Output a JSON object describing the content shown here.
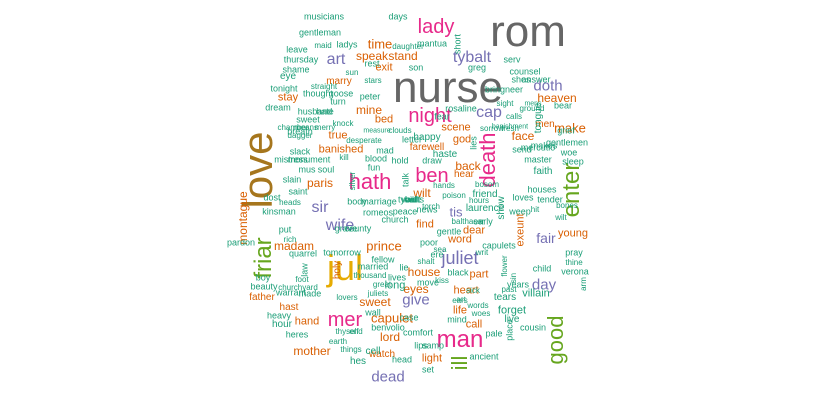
{
  "palette": {
    "grey": "#666666",
    "teal": "#1b9e77",
    "orange": "#d95f02",
    "purple": "#7570b3",
    "pink": "#e7298a",
    "green": "#66a61e",
    "gold": "#e6ab02",
    "brown": "#a6761d"
  },
  "words": [
    {
      "t": "rom",
      "c": "grey"
    },
    {
      "t": "nurse",
      "c": "grey"
    },
    {
      "t": "love",
      "c": "brown"
    },
    {
      "t": "jul",
      "c": "gold"
    },
    {
      "t": "man",
      "c": "pink"
    },
    {
      "t": "lady",
      "c": "pink"
    },
    {
      "t": "night",
      "c": "pink"
    },
    {
      "t": "friar",
      "c": "green"
    },
    {
      "t": "good",
      "c": "green"
    },
    {
      "t": "enter",
      "c": "green"
    },
    {
      "t": "death",
      "c": "pink"
    },
    {
      "t": "hath",
      "c": "pink"
    },
    {
      "t": "ben",
      "c": "pink"
    },
    {
      "t": "ill",
      "c": "green"
    },
    {
      "t": "mer",
      "c": "pink"
    },
    {
      "t": "juliet",
      "c": "purple"
    },
    {
      "t": "tybalt",
      "c": "purple"
    },
    {
      "t": "art",
      "c": "purple"
    },
    {
      "t": "cap",
      "c": "purple"
    },
    {
      "t": "doth",
      "c": "purple"
    },
    {
      "t": "sir",
      "c": "purple"
    },
    {
      "t": "wife",
      "c": "purple"
    },
    {
      "t": "give",
      "c": "purple"
    },
    {
      "t": "dead",
      "c": "purple"
    },
    {
      "t": "day",
      "c": "purple"
    },
    {
      "t": "fair",
      "c": "purple"
    },
    {
      "t": "prince",
      "c": "orange"
    },
    {
      "t": "capulet",
      "c": "orange"
    },
    {
      "t": "tis",
      "c": "purple"
    },
    {
      "t": "time",
      "c": "orange"
    },
    {
      "t": "make",
      "c": "orange"
    },
    {
      "t": "paris",
      "c": "orange"
    },
    {
      "t": "speak",
      "c": "orange"
    },
    {
      "t": "stand",
      "c": "orange"
    },
    {
      "t": "exit",
      "c": "orange"
    },
    {
      "t": "stay",
      "c": "orange"
    },
    {
      "t": "heaven",
      "c": "orange"
    },
    {
      "t": "montague",
      "c": "orange"
    },
    {
      "t": "madam",
      "c": "orange"
    },
    {
      "t": "mother",
      "c": "orange"
    },
    {
      "t": "house",
      "c": "orange"
    },
    {
      "t": "eyes",
      "c": "orange"
    },
    {
      "t": "sweet",
      "c": "orange"
    },
    {
      "t": "word",
      "c": "orange"
    },
    {
      "t": "exeunt",
      "c": "orange"
    },
    {
      "t": "young",
      "c": "orange"
    },
    {
      "t": "father",
      "c": "orange"
    },
    {
      "t": "hast",
      "c": "orange"
    },
    {
      "t": "hand",
      "c": "orange"
    },
    {
      "t": "lord",
      "c": "orange"
    },
    {
      "t": "light",
      "c": "orange"
    },
    {
      "t": "call",
      "c": "orange"
    },
    {
      "t": "watch",
      "c": "orange"
    },
    {
      "t": "mine",
      "c": "orange"
    },
    {
      "t": "bed",
      "c": "orange"
    },
    {
      "t": "face",
      "c": "orange"
    },
    {
      "t": "back",
      "c": "orange"
    },
    {
      "t": "wilt",
      "c": "orange"
    },
    {
      "t": "find",
      "c": "orange"
    },
    {
      "t": "dear",
      "c": "orange"
    },
    {
      "t": "part",
      "c": "orange"
    },
    {
      "t": "heart",
      "c": "orange"
    },
    {
      "t": "life",
      "c": "orange"
    },
    {
      "t": "scene",
      "c": "orange"
    },
    {
      "t": "god",
      "c": "orange"
    },
    {
      "t": "men",
      "c": "orange"
    },
    {
      "t": "marry",
      "c": "orange"
    },
    {
      "t": "true",
      "c": "orange"
    },
    {
      "t": "hear",
      "c": "orange"
    },
    {
      "t": "farewell",
      "c": "orange"
    },
    {
      "t": "banished",
      "c": "orange"
    },
    {
      "t": "holy",
      "c": "orange"
    },
    {
      "t": "musicians",
      "c": "teal"
    },
    {
      "t": "gentleman",
      "c": "teal"
    },
    {
      "t": "leave",
      "c": "teal"
    },
    {
      "t": "thursday",
      "c": "teal"
    },
    {
      "t": "shame",
      "c": "teal"
    },
    {
      "t": "eye",
      "c": "teal"
    },
    {
      "t": "tonight",
      "c": "teal"
    },
    {
      "t": "dream",
      "c": "teal"
    },
    {
      "t": "husband",
      "c": "teal"
    },
    {
      "t": "hate",
      "c": "teal"
    },
    {
      "t": "sweet",
      "c": "teal"
    },
    {
      "t": "breath",
      "c": "teal"
    },
    {
      "t": "slack",
      "c": "teal"
    },
    {
      "t": "mistress",
      "c": "teal"
    },
    {
      "t": "monument",
      "c": "teal"
    },
    {
      "t": "mus",
      "c": "teal"
    },
    {
      "t": "soul",
      "c": "teal"
    },
    {
      "t": "slain",
      "c": "teal"
    },
    {
      "t": "saint",
      "c": "teal"
    },
    {
      "t": "dost",
      "c": "teal"
    },
    {
      "t": "kinsman",
      "c": "teal"
    },
    {
      "t": "put",
      "c": "teal"
    },
    {
      "t": "pardon",
      "c": "teal"
    },
    {
      "t": "quarrel",
      "c": "teal"
    },
    {
      "t": "boy",
      "c": "teal"
    },
    {
      "t": "beauty",
      "c": "teal"
    },
    {
      "t": "heavy",
      "c": "teal"
    },
    {
      "t": "heres",
      "c": "teal"
    },
    {
      "t": "made",
      "c": "teal"
    },
    {
      "t": "warrant",
      "c": "teal"
    },
    {
      "t": "cell",
      "c": "teal"
    },
    {
      "t": "hes",
      "c": "teal"
    },
    {
      "t": "earth",
      "c": "teal"
    },
    {
      "t": "benvolio",
      "c": "teal"
    },
    {
      "t": "comfort",
      "c": "teal"
    },
    {
      "t": "lips",
      "c": "teal"
    },
    {
      "t": "samp",
      "c": "teal"
    },
    {
      "t": "head",
      "c": "teal"
    },
    {
      "t": "set",
      "c": "teal"
    },
    {
      "t": "ancient",
      "c": "teal"
    },
    {
      "t": "mind",
      "c": "teal"
    },
    {
      "t": "forget",
      "c": "teal"
    },
    {
      "t": "live",
      "c": "teal"
    },
    {
      "t": "tears",
      "c": "teal"
    },
    {
      "t": "villain",
      "c": "teal"
    },
    {
      "t": "verona",
      "c": "teal"
    },
    {
      "t": "pray",
      "c": "teal"
    },
    {
      "t": "thine",
      "c": "teal"
    },
    {
      "t": "cousin",
      "c": "teal"
    },
    {
      "t": "pale",
      "c": "teal"
    },
    {
      "t": "move",
      "c": "teal"
    },
    {
      "t": "ere",
      "c": "teal"
    },
    {
      "t": "long",
      "c": "teal"
    },
    {
      "t": "poor",
      "c": "teal"
    },
    {
      "t": "married",
      "c": "teal"
    },
    {
      "t": "lie",
      "c": "teal"
    },
    {
      "t": "lives",
      "c": "teal"
    },
    {
      "t": "fellow",
      "c": "teal"
    },
    {
      "t": "tomorrow",
      "c": "teal"
    },
    {
      "t": "church",
      "c": "teal"
    },
    {
      "t": "marriage",
      "c": "teal"
    },
    {
      "t": "romeos",
      "c": "teal"
    },
    {
      "t": "news",
      "c": "teal"
    },
    {
      "t": "gentle",
      "c": "teal"
    },
    {
      "t": "blood",
      "c": "teal"
    },
    {
      "t": "haste",
      "c": "teal"
    },
    {
      "t": "friend",
      "c": "teal"
    },
    {
      "t": "laurence",
      "c": "teal"
    },
    {
      "t": "early",
      "c": "teal"
    },
    {
      "t": "capulets",
      "c": "teal"
    },
    {
      "t": "loves",
      "c": "teal"
    },
    {
      "t": "weep",
      "c": "teal"
    },
    {
      "t": "faith",
      "c": "teal"
    },
    {
      "t": "woe",
      "c": "teal"
    },
    {
      "t": "sleep",
      "c": "teal"
    },
    {
      "t": "master",
      "c": "teal"
    },
    {
      "t": "makes",
      "c": "teal"
    },
    {
      "t": "gentlemen",
      "c": "teal"
    },
    {
      "t": "grief",
      "c": "teal"
    },
    {
      "t": "bear",
      "c": "teal"
    },
    {
      "t": "ground",
      "c": "teal"
    },
    {
      "t": "answer",
      "c": "teal"
    },
    {
      "t": "counsel",
      "c": "teal"
    },
    {
      "t": "shes",
      "c": "teal"
    },
    {
      "t": "bring",
      "c": "teal"
    },
    {
      "t": "neer",
      "c": "teal"
    },
    {
      "t": "greg",
      "c": "teal"
    },
    {
      "t": "serv",
      "c": "teal"
    },
    {
      "t": "son",
      "c": "teal"
    },
    {
      "t": "mantua",
      "c": "teal"
    },
    {
      "t": "daughter",
      "c": "teal"
    },
    {
      "t": "days",
      "c": "teal"
    },
    {
      "t": "peter",
      "c": "teal"
    },
    {
      "t": "goose",
      "c": "teal"
    },
    {
      "t": "thought",
      "c": "teal"
    },
    {
      "t": "turn",
      "c": "teal"
    },
    {
      "t": "happy",
      "c": "teal"
    },
    {
      "t": "fear",
      "c": "teal"
    },
    {
      "t": "rosaline",
      "c": "teal"
    },
    {
      "t": "hour",
      "c": "teal"
    },
    {
      "t": "black",
      "c": "teal"
    },
    {
      "t": "years",
      "c": "teal"
    },
    {
      "t": "child",
      "c": "teal"
    },
    {
      "t": "mercutio",
      "c": "teal"
    },
    {
      "t": "send",
      "c": "teal"
    },
    {
      "t": "hold",
      "c": "teal"
    },
    {
      "t": "draw",
      "c": "teal"
    },
    {
      "t": "fun",
      "c": "teal"
    },
    {
      "t": "letter",
      "c": "teal"
    },
    {
      "t": "case",
      "c": "teal"
    },
    {
      "t": "wall",
      "c": "teal"
    },
    {
      "t": "tongue",
      "c": "teal"
    },
    {
      "t": "place",
      "c": "teal"
    },
    {
      "t": "show",
      "c": "teal"
    },
    {
      "t": "lies",
      "c": "teal"
    },
    {
      "t": "body",
      "c": "teal"
    },
    {
      "t": "grave",
      "c": "teal"
    },
    {
      "t": "county",
      "c": "teal"
    },
    {
      "t": "peace",
      "c": "teal"
    },
    {
      "t": "law",
      "c": "teal"
    },
    {
      "t": "maid",
      "c": "teal"
    },
    {
      "t": "ladys",
      "c": "teal"
    },
    {
      "t": "rest",
      "c": "teal"
    },
    {
      "t": "sun",
      "c": "teal"
    },
    {
      "t": "straight",
      "c": "teal"
    },
    {
      "t": "stars",
      "c": "teal"
    },
    {
      "t": "mad",
      "c": "teal"
    },
    {
      "t": "kill",
      "c": "teal"
    },
    {
      "t": "desperate",
      "c": "teal"
    },
    {
      "t": "measure",
      "c": "teal"
    },
    {
      "t": "clouds",
      "c": "teal"
    },
    {
      "t": "sorrow",
      "c": "teal"
    },
    {
      "t": "fresh",
      "c": "teal"
    },
    {
      "t": "sight",
      "c": "teal"
    },
    {
      "t": "banishment",
      "c": "teal"
    },
    {
      "t": "calls",
      "c": "teal"
    },
    {
      "t": "mens",
      "c": "teal"
    },
    {
      "t": "hit",
      "c": "teal"
    },
    {
      "t": "houses",
      "c": "teal"
    },
    {
      "t": "tender",
      "c": "teal"
    },
    {
      "t": "bones",
      "c": "teal"
    },
    {
      "t": "wilt",
      "c": "teal"
    },
    {
      "t": "arm",
      "c": "teal"
    },
    {
      "t": "sin",
      "c": "teal"
    },
    {
      "t": "flower",
      "c": "teal"
    },
    {
      "t": "writ",
      "c": "teal"
    },
    {
      "t": "hours",
      "c": "teal"
    },
    {
      "t": "bosom",
      "c": "teal"
    },
    {
      "t": "hands",
      "c": "teal"
    },
    {
      "t": "poison",
      "c": "teal"
    },
    {
      "t": "torch",
      "c": "teal"
    },
    {
      "t": "balthasar",
      "c": "teal"
    },
    {
      "t": "sea",
      "c": "teal"
    },
    {
      "t": "shalt",
      "c": "teal"
    },
    {
      "t": "kiss",
      "c": "teal"
    },
    {
      "t": "ears",
      "c": "teal"
    },
    {
      "t": "act",
      "c": "teal"
    },
    {
      "t": "sick",
      "c": "teal"
    },
    {
      "t": "woes",
      "c": "teal"
    },
    {
      "t": "words",
      "c": "teal"
    },
    {
      "t": "great",
      "c": "teal"
    },
    {
      "t": "juliets",
      "c": "teal"
    },
    {
      "t": "thousand",
      "c": "teal"
    },
    {
      "t": "lovers",
      "c": "teal"
    },
    {
      "t": "foot",
      "c": "teal"
    },
    {
      "t": "churchyard",
      "c": "teal"
    },
    {
      "t": "heads",
      "c": "teal"
    },
    {
      "t": "rich",
      "c": "teal"
    },
    {
      "t": "dagger",
      "c": "teal"
    },
    {
      "t": "chamber",
      "c": "teal"
    },
    {
      "t": "means",
      "c": "teal"
    },
    {
      "t": "knock",
      "c": "teal"
    },
    {
      "t": "merry",
      "c": "teal"
    },
    {
      "t": "thyself",
      "c": "teal"
    },
    {
      "t": "end",
      "c": "teal"
    },
    {
      "t": "things",
      "c": "teal"
    },
    {
      "t": "talk",
      "c": "teal"
    },
    {
      "t": "silver",
      "c": "teal"
    },
    {
      "t": "short",
      "c": "teal"
    },
    {
      "t": "past",
      "c": "teal"
    },
    {
      "t": "wit",
      "c": "teal"
    },
    {
      "t": "bid",
      "c": "teal"
    },
    {
      "t": "vault",
      "c": "teal"
    },
    {
      "t": "tybalts",
      "c": "teal"
    },
    {
      "t": "oer",
      "c": "teal"
    }
  ]
}
